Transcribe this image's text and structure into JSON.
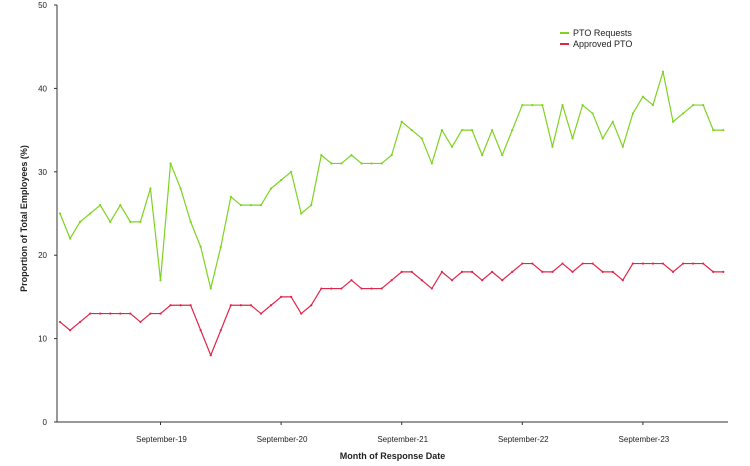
{
  "chart_data": {
    "type": "line",
    "title": "",
    "xlabel": "Month of Response Date",
    "ylabel": "Proportion of Total Employees (%)",
    "ylim": [
      0,
      50
    ],
    "yticks": [
      0,
      10,
      20,
      30,
      40,
      50
    ],
    "x_tick_labels": [
      "September-19",
      "September-20",
      "September-21",
      "September-22",
      "September-23"
    ],
    "x_tick_index": [
      10,
      22,
      34,
      46,
      58
    ],
    "grid": false,
    "legend_position": "top-right",
    "x": [
      0,
      1,
      2,
      3,
      4,
      5,
      6,
      7,
      8,
      9,
      10,
      11,
      12,
      13,
      14,
      15,
      16,
      17,
      18,
      19,
      20,
      21,
      22,
      23,
      24,
      25,
      26,
      27,
      28,
      29,
      30,
      31,
      32,
      33,
      34,
      35,
      36,
      37,
      38,
      39,
      40,
      41,
      42,
      43,
      44,
      45,
      46,
      47,
      48,
      49,
      50,
      51,
      52,
      53,
      54,
      55,
      56,
      57,
      58,
      59,
      60,
      61,
      62,
      63,
      64,
      65,
      66
    ],
    "series": [
      {
        "name": "PTO Requests",
        "color": "#7ed321",
        "values": [
          25,
          22,
          24,
          25,
          26,
          24,
          26,
          24,
          24,
          28,
          17,
          31,
          28,
          24,
          21,
          16,
          21,
          27,
          26,
          26,
          26,
          28,
          29,
          30,
          25,
          26,
          32,
          31,
          31,
          32,
          31,
          31,
          31,
          32,
          36,
          35,
          34,
          31,
          35,
          33,
          35,
          35,
          32,
          35,
          32,
          35,
          38,
          38,
          38,
          33,
          38,
          34,
          38,
          37,
          34,
          36,
          33,
          37,
          39,
          38,
          42,
          36,
          37,
          38,
          38,
          35,
          35
        ]
      },
      {
        "name": "Approved PTO",
        "color": "#e0264a",
        "values": [
          12,
          11,
          12,
          13,
          13,
          13,
          13,
          13,
          12,
          13,
          13,
          14,
          14,
          14,
          11,
          8,
          11,
          14,
          14,
          14,
          13,
          14,
          15,
          15,
          13,
          14,
          16,
          16,
          16,
          17,
          16,
          16,
          16,
          17,
          18,
          18,
          17,
          16,
          18,
          17,
          18,
          18,
          17,
          18,
          17,
          18,
          19,
          19,
          18,
          18,
          19,
          18,
          19,
          19,
          18,
          18,
          17,
          19,
          19,
          19,
          19,
          18,
          19,
          19,
          19,
          18,
          18
        ]
      }
    ]
  }
}
